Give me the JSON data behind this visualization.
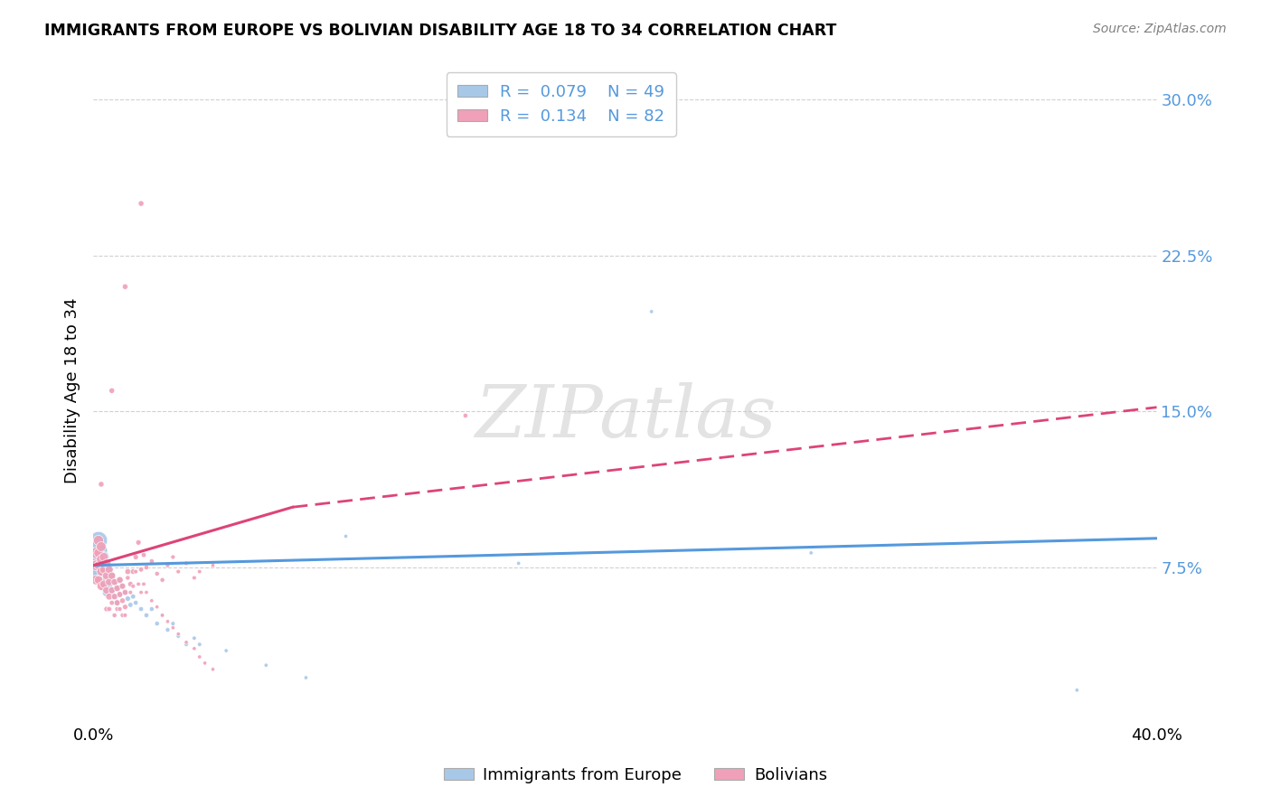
{
  "title": "IMMIGRANTS FROM EUROPE VS BOLIVIAN DISABILITY AGE 18 TO 34 CORRELATION CHART",
  "source": "Source: ZipAtlas.com",
  "ylabel": "Disability Age 18 to 34",
  "yticks": [
    "7.5%",
    "15.0%",
    "22.5%",
    "30.0%"
  ],
  "ytick_vals": [
    0.075,
    0.15,
    0.225,
    0.3
  ],
  "xlim": [
    0.0,
    0.4
  ],
  "ylim": [
    0.0,
    0.32
  ],
  "legend_blue_label": "Immigrants from Europe",
  "legend_pink_label": "Bolivians",
  "R_blue": "0.079",
  "N_blue": "49",
  "R_pink": "0.134",
  "N_pink": "82",
  "color_blue": "#a8c8e8",
  "color_pink": "#f0a0b8",
  "trendline_blue": {
    "x": [
      0.0,
      0.4
    ],
    "y": [
      0.076,
      0.089
    ]
  },
  "trendline_pink_solid": {
    "x": [
      0.0,
      0.075
    ],
    "y": [
      0.076,
      0.104
    ]
  },
  "trendline_pink_dashed": {
    "x": [
      0.075,
      0.4
    ],
    "y": [
      0.104,
      0.152
    ]
  },
  "watermark": "ZIPatlas",
  "background_color": "#ffffff",
  "grid_color": "#d0d0d0",
  "blue_scatter": {
    "x": [
      0.001,
      0.001,
      0.002,
      0.002,
      0.002,
      0.003,
      0.003,
      0.003,
      0.004,
      0.004,
      0.004,
      0.005,
      0.005,
      0.005,
      0.006,
      0.006,
      0.007,
      0.007,
      0.008,
      0.008,
      0.009,
      0.009,
      0.01,
      0.01,
      0.011,
      0.012,
      0.013,
      0.014,
      0.015,
      0.016,
      0.018,
      0.02,
      0.022,
      0.024,
      0.026,
      0.028,
      0.03,
      0.032,
      0.035,
      0.038,
      0.04,
      0.05,
      0.065,
      0.08,
      0.095,
      0.16,
      0.21,
      0.27,
      0.37
    ],
    "y": [
      0.082,
      0.076,
      0.088,
      0.079,
      0.072,
      0.083,
      0.076,
      0.069,
      0.08,
      0.073,
      0.066,
      0.077,
      0.07,
      0.063,
      0.074,
      0.067,
      0.071,
      0.064,
      0.068,
      0.061,
      0.065,
      0.058,
      0.069,
      0.062,
      0.066,
      0.063,
      0.06,
      0.057,
      0.061,
      0.058,
      0.055,
      0.052,
      0.055,
      0.048,
      0.052,
      0.045,
      0.048,
      0.042,
      0.038,
      0.041,
      0.038,
      0.035,
      0.028,
      0.022,
      0.09,
      0.077,
      0.198,
      0.082,
      0.016
    ],
    "sizes": [
      350,
      280,
      200,
      160,
      120,
      100,
      90,
      80,
      75,
      65,
      60,
      55,
      50,
      45,
      40,
      38,
      35,
      32,
      30,
      28,
      25,
      23,
      22,
      20,
      20,
      18,
      18,
      16,
      16,
      15,
      15,
      15,
      14,
      14,
      13,
      13,
      12,
      12,
      12,
      11,
      11,
      10,
      10,
      10,
      10,
      10,
      10,
      10,
      10
    ]
  },
  "pink_scatter": {
    "x": [
      0.001,
      0.001,
      0.001,
      0.002,
      0.002,
      0.002,
      0.002,
      0.003,
      0.003,
      0.003,
      0.003,
      0.004,
      0.004,
      0.004,
      0.005,
      0.005,
      0.005,
      0.006,
      0.006,
      0.006,
      0.007,
      0.007,
      0.008,
      0.008,
      0.009,
      0.009,
      0.01,
      0.01,
      0.011,
      0.011,
      0.012,
      0.012,
      0.013,
      0.014,
      0.015,
      0.016,
      0.017,
      0.018,
      0.019,
      0.02,
      0.022,
      0.024,
      0.026,
      0.028,
      0.03,
      0.032,
      0.035,
      0.038,
      0.04,
      0.045,
      0.005,
      0.006,
      0.007,
      0.008,
      0.009,
      0.01,
      0.011,
      0.012,
      0.013,
      0.014,
      0.015,
      0.016,
      0.017,
      0.018,
      0.019,
      0.02,
      0.022,
      0.024,
      0.026,
      0.028,
      0.03,
      0.032,
      0.035,
      0.038,
      0.04,
      0.042,
      0.045,
      0.003,
      0.007,
      0.012,
      0.018,
      0.14
    ],
    "y": [
      0.082,
      0.076,
      0.069,
      0.088,
      0.082,
      0.076,
      0.069,
      0.085,
      0.079,
      0.073,
      0.066,
      0.08,
      0.074,
      0.067,
      0.077,
      0.071,
      0.064,
      0.074,
      0.068,
      0.061,
      0.071,
      0.064,
      0.068,
      0.061,
      0.065,
      0.058,
      0.069,
      0.062,
      0.066,
      0.059,
      0.063,
      0.056,
      0.073,
      0.067,
      0.073,
      0.08,
      0.087,
      0.074,
      0.081,
      0.075,
      0.078,
      0.072,
      0.069,
      0.076,
      0.08,
      0.073,
      0.077,
      0.07,
      0.073,
      0.076,
      0.055,
      0.055,
      0.058,
      0.052,
      0.055,
      0.055,
      0.052,
      0.052,
      0.07,
      0.063,
      0.066,
      0.073,
      0.067,
      0.063,
      0.067,
      0.063,
      0.059,
      0.056,
      0.052,
      0.049,
      0.046,
      0.043,
      0.039,
      0.036,
      0.032,
      0.029,
      0.026,
      0.115,
      0.16,
      0.21,
      0.25,
      0.148
    ],
    "sizes": [
      80,
      70,
      60,
      65,
      55,
      50,
      45,
      60,
      55,
      50,
      45,
      50,
      45,
      40,
      45,
      40,
      35,
      40,
      35,
      30,
      35,
      30,
      30,
      25,
      28,
      23,
      28,
      23,
      25,
      20,
      22,
      18,
      22,
      18,
      20,
      18,
      18,
      16,
      16,
      15,
      15,
      14,
      14,
      13,
      13,
      12,
      12,
      12,
      11,
      11,
      18,
      16,
      16,
      14,
      14,
      13,
      13,
      12,
      14,
      12,
      12,
      12,
      11,
      11,
      11,
      10,
      10,
      10,
      10,
      10,
      10,
      10,
      10,
      10,
      10,
      10,
      10,
      20,
      20,
      20,
      20,
      15
    ]
  }
}
